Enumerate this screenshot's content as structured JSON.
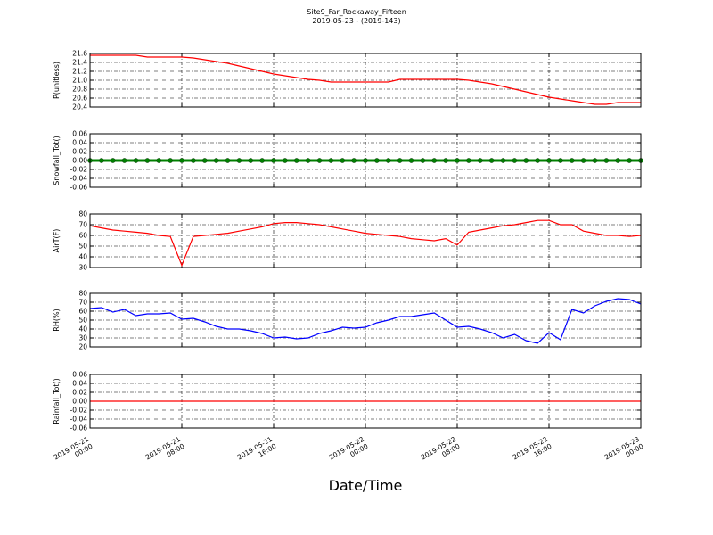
{
  "title": "Site9_Far_Rockaway_Fifteen",
  "subtitle": "2019-05-23 - (2019-143)",
  "xlabel": "Date/Time",
  "chart_data": [
    {
      "type": "line",
      "ylabel": "P(unitless)",
      "x": [
        "2019-05-21 00:00",
        "2019-05-21 01:00",
        "2019-05-21 02:00",
        "2019-05-21 03:00",
        "2019-05-21 04:00",
        "2019-05-21 05:00",
        "2019-05-21 06:00",
        "2019-05-21 07:00",
        "2019-05-21 08:00",
        "2019-05-21 09:00",
        "2019-05-21 10:00",
        "2019-05-21 11:00",
        "2019-05-21 12:00",
        "2019-05-21 13:00",
        "2019-05-21 14:00",
        "2019-05-21 15:00",
        "2019-05-21 16:00",
        "2019-05-21 17:00",
        "2019-05-21 18:00",
        "2019-05-21 19:00",
        "2019-05-21 20:00",
        "2019-05-21 21:00",
        "2019-05-21 22:00",
        "2019-05-21 23:00",
        "2019-05-22 00:00",
        "2019-05-22 01:00",
        "2019-05-22 02:00",
        "2019-05-22 03:00",
        "2019-05-22 04:00",
        "2019-05-22 05:00",
        "2019-05-22 06:00",
        "2019-05-22 07:00",
        "2019-05-22 08:00",
        "2019-05-22 09:00",
        "2019-05-22 10:00",
        "2019-05-22 11:00",
        "2019-05-22 12:00",
        "2019-05-22 13:00",
        "2019-05-22 14:00",
        "2019-05-22 15:00",
        "2019-05-22 16:00",
        "2019-05-22 17:00",
        "2019-05-22 18:00",
        "2019-05-22 19:00",
        "2019-05-22 20:00",
        "2019-05-22 21:00",
        "2019-05-22 22:00",
        "2019-05-22 23:00",
        "2019-05-23 00:00"
      ],
      "series": [
        {
          "color": "#ff0000",
          "values": [
            21.56,
            21.56,
            21.56,
            21.56,
            21.56,
            21.52,
            21.52,
            21.52,
            21.52,
            21.5,
            21.46,
            21.42,
            21.38,
            21.32,
            21.26,
            21.2,
            21.14,
            21.1,
            21.06,
            21.02,
            21.0,
            20.96,
            20.96,
            20.96,
            20.96,
            20.96,
            20.96,
            21.02,
            21.02,
            21.02,
            21.02,
            21.02,
            21.02,
            21.0,
            20.96,
            20.92,
            20.86,
            20.8,
            20.74,
            20.68,
            20.62,
            20.58,
            20.54,
            20.5,
            20.46,
            20.46,
            20.5,
            20.5,
            20.5
          ]
        }
      ],
      "xlim": [
        "2019-05-21 00:00",
        "2019-05-23 00:00"
      ],
      "xticks": [
        "2019-05-21 00:00",
        "2019-05-21 08:00",
        "2019-05-21 16:00",
        "2019-05-22 00:00",
        "2019-05-22 08:00",
        "2019-05-22 16:00",
        "2019-05-23 00:00"
      ],
      "ylim": [
        20.4,
        21.6
      ],
      "yticks": [
        20.4,
        20.6,
        20.8,
        {
          "value": 21,
          "label": "21.0"
        },
        21.2,
        21.4,
        21.6
      ],
      "grid": true
    },
    {
      "type": "line",
      "ylabel": "Snowfall_Tot()",
      "x": [
        "2019-05-21 00:00",
        "2019-05-21 01:00",
        "2019-05-21 02:00",
        "2019-05-21 03:00",
        "2019-05-21 04:00",
        "2019-05-21 05:00",
        "2019-05-21 06:00",
        "2019-05-21 07:00",
        "2019-05-21 08:00",
        "2019-05-21 09:00",
        "2019-05-21 10:00",
        "2019-05-21 11:00",
        "2019-05-21 12:00",
        "2019-05-21 13:00",
        "2019-05-21 14:00",
        "2019-05-21 15:00",
        "2019-05-21 16:00",
        "2019-05-21 17:00",
        "2019-05-21 18:00",
        "2019-05-21 19:00",
        "2019-05-21 20:00",
        "2019-05-21 21:00",
        "2019-05-21 22:00",
        "2019-05-21 23:00",
        "2019-05-22 00:00",
        "2019-05-22 01:00",
        "2019-05-22 02:00",
        "2019-05-22 03:00",
        "2019-05-22 04:00",
        "2019-05-22 05:00",
        "2019-05-22 06:00",
        "2019-05-22 07:00",
        "2019-05-22 08:00",
        "2019-05-22 09:00",
        "2019-05-22 10:00",
        "2019-05-22 11:00",
        "2019-05-22 12:00",
        "2019-05-22 13:00",
        "2019-05-22 14:00",
        "2019-05-22 15:00",
        "2019-05-22 16:00",
        "2019-05-22 17:00",
        "2019-05-22 18:00",
        "2019-05-22 19:00",
        "2019-05-22 20:00",
        "2019-05-22 21:00",
        "2019-05-22 22:00",
        "2019-05-22 23:00",
        "2019-05-23 00:00"
      ],
      "series": [
        {
          "color": "#008000",
          "markers": true,
          "values": [
            0,
            0,
            0,
            0,
            0,
            0,
            0,
            0,
            0,
            0,
            0,
            0,
            0,
            0,
            0,
            0,
            0,
            0,
            0,
            0,
            0,
            0,
            0,
            0,
            0,
            0,
            0,
            0,
            0,
            0,
            0,
            0,
            0,
            0,
            0,
            0,
            0,
            0,
            0,
            0,
            0,
            0,
            0,
            0,
            0,
            0,
            0,
            0,
            0
          ]
        }
      ],
      "xlim": [
        "2019-05-21 00:00",
        "2019-05-23 00:00"
      ],
      "xticks": [
        "2019-05-21 00:00",
        "2019-05-21 08:00",
        "2019-05-21 16:00",
        "2019-05-22 00:00",
        "2019-05-22 08:00",
        "2019-05-22 16:00",
        "2019-05-23 00:00"
      ],
      "ylim": [
        -0.06,
        0.06
      ],
      "yticks": [
        -0.06,
        -0.04,
        -0.02,
        {
          "value": 0,
          "label": "0.00"
        },
        0.02,
        0.04,
        0.06
      ],
      "grid": true
    },
    {
      "type": "line",
      "ylabel": "AirT(F)",
      "x": [
        "2019-05-21 00:00",
        "2019-05-21 01:00",
        "2019-05-21 02:00",
        "2019-05-21 03:00",
        "2019-05-21 04:00",
        "2019-05-21 05:00",
        "2019-05-21 06:00",
        "2019-05-21 07:00",
        "2019-05-21 08:00",
        "2019-05-21 09:00",
        "2019-05-21 10:00",
        "2019-05-21 11:00",
        "2019-05-21 12:00",
        "2019-05-21 13:00",
        "2019-05-21 14:00",
        "2019-05-21 15:00",
        "2019-05-21 16:00",
        "2019-05-21 17:00",
        "2019-05-21 18:00",
        "2019-05-21 19:00",
        "2019-05-21 20:00",
        "2019-05-21 21:00",
        "2019-05-21 22:00",
        "2019-05-21 23:00",
        "2019-05-22 00:00",
        "2019-05-22 01:00",
        "2019-05-22 02:00",
        "2019-05-22 03:00",
        "2019-05-22 04:00",
        "2019-05-22 05:00",
        "2019-05-22 06:00",
        "2019-05-22 07:00",
        "2019-05-22 08:00",
        "2019-05-22 09:00",
        "2019-05-22 10:00",
        "2019-05-22 11:00",
        "2019-05-22 12:00",
        "2019-05-22 13:00",
        "2019-05-22 14:00",
        "2019-05-22 15:00",
        "2019-05-22 16:00",
        "2019-05-22 17:00",
        "2019-05-22 18:00",
        "2019-05-22 19:00",
        "2019-05-22 20:00",
        "2019-05-22 21:00",
        "2019-05-22 22:00",
        "2019-05-22 23:00",
        "2019-05-23 00:00"
      ],
      "series": [
        {
          "color": "#ff0000",
          "values": [
            69,
            67,
            65,
            64,
            63,
            62,
            60,
            59,
            32,
            59,
            60,
            61,
            62,
            64,
            66,
            68,
            71,
            72,
            72,
            71,
            70,
            68,
            66,
            64,
            62,
            61,
            60,
            59,
            57,
            56,
            55,
            57,
            51,
            63,
            65,
            67,
            69,
            70,
            72,
            74,
            74,
            70,
            70,
            64,
            62,
            60,
            60,
            59,
            60
          ]
        }
      ],
      "xlim": [
        "2019-05-21 00:00",
        "2019-05-23 00:00"
      ],
      "xticks": [
        "2019-05-21 00:00",
        "2019-05-21 08:00",
        "2019-05-21 16:00",
        "2019-05-22 00:00",
        "2019-05-22 08:00",
        "2019-05-22 16:00",
        "2019-05-23 00:00"
      ],
      "ylim": [
        30,
        80
      ],
      "yticks": [
        30,
        40,
        50,
        60,
        70,
        80
      ],
      "grid": true
    },
    {
      "type": "line",
      "ylabel": "RH(%)",
      "x": [
        "2019-05-21 00:00",
        "2019-05-21 01:00",
        "2019-05-21 02:00",
        "2019-05-21 03:00",
        "2019-05-21 04:00",
        "2019-05-21 05:00",
        "2019-05-21 06:00",
        "2019-05-21 07:00",
        "2019-05-21 08:00",
        "2019-05-21 09:00",
        "2019-05-21 10:00",
        "2019-05-21 11:00",
        "2019-05-21 12:00",
        "2019-05-21 13:00",
        "2019-05-21 14:00",
        "2019-05-21 15:00",
        "2019-05-21 16:00",
        "2019-05-21 17:00",
        "2019-05-21 18:00",
        "2019-05-21 19:00",
        "2019-05-21 20:00",
        "2019-05-21 21:00",
        "2019-05-21 22:00",
        "2019-05-21 23:00",
        "2019-05-22 00:00",
        "2019-05-22 01:00",
        "2019-05-22 02:00",
        "2019-05-22 03:00",
        "2019-05-22 04:00",
        "2019-05-22 05:00",
        "2019-05-22 06:00",
        "2019-05-22 07:00",
        "2019-05-22 08:00",
        "2019-05-22 09:00",
        "2019-05-22 10:00",
        "2019-05-22 11:00",
        "2019-05-22 12:00",
        "2019-05-22 13:00",
        "2019-05-22 14:00",
        "2019-05-22 15:00",
        "2019-05-22 16:00",
        "2019-05-22 17:00",
        "2019-05-22 18:00",
        "2019-05-22 19:00",
        "2019-05-22 20:00",
        "2019-05-22 21:00",
        "2019-05-22 22:00",
        "2019-05-22 23:00",
        "2019-05-23 00:00"
      ],
      "series": [
        {
          "color": "#0000ff",
          "values": [
            63,
            64,
            59,
            62,
            55,
            57,
            57,
            58,
            51,
            52,
            48,
            43,
            40,
            40,
            38,
            35,
            30,
            31,
            29,
            30,
            35,
            38,
            42,
            41,
            42,
            47,
            50,
            54,
            54,
            56,
            58,
            50,
            42,
            43,
            40,
            36,
            30,
            34,
            27,
            24,
            36,
            28,
            62,
            58,
            66,
            71,
            74,
            73,
            68
          ]
        }
      ],
      "xlim": [
        "2019-05-21 00:00",
        "2019-05-23 00:00"
      ],
      "xticks": [
        "2019-05-21 00:00",
        "2019-05-21 08:00",
        "2019-05-21 16:00",
        "2019-05-22 00:00",
        "2019-05-22 08:00",
        "2019-05-22 16:00",
        "2019-05-23 00:00"
      ],
      "ylim": [
        20,
        80
      ],
      "yticks": [
        20,
        30,
        40,
        50,
        60,
        70,
        80
      ],
      "grid": true
    },
    {
      "type": "line",
      "ylabel": "Rainfall_Tot()",
      "x": [
        "2019-05-21 00:00",
        "2019-05-21 01:00",
        "2019-05-21 02:00",
        "2019-05-21 03:00",
        "2019-05-21 04:00",
        "2019-05-21 05:00",
        "2019-05-21 06:00",
        "2019-05-21 07:00",
        "2019-05-21 08:00",
        "2019-05-21 09:00",
        "2019-05-21 10:00",
        "2019-05-21 11:00",
        "2019-05-21 12:00",
        "2019-05-21 13:00",
        "2019-05-21 14:00",
        "2019-05-21 15:00",
        "2019-05-21 16:00",
        "2019-05-21 17:00",
        "2019-05-21 18:00",
        "2019-05-21 19:00",
        "2019-05-21 20:00",
        "2019-05-21 21:00",
        "2019-05-21 22:00",
        "2019-05-21 23:00",
        "2019-05-22 00:00",
        "2019-05-22 01:00",
        "2019-05-22 02:00",
        "2019-05-22 03:00",
        "2019-05-22 04:00",
        "2019-05-22 05:00",
        "2019-05-22 06:00",
        "2019-05-22 07:00",
        "2019-05-22 08:00",
        "2019-05-22 09:00",
        "2019-05-22 10:00",
        "2019-05-22 11:00",
        "2019-05-22 12:00",
        "2019-05-22 13:00",
        "2019-05-22 14:00",
        "2019-05-22 15:00",
        "2019-05-22 16:00",
        "2019-05-22 17:00",
        "2019-05-22 18:00",
        "2019-05-22 19:00",
        "2019-05-22 20:00",
        "2019-05-22 21:00",
        "2019-05-22 22:00",
        "2019-05-22 23:00",
        "2019-05-23 00:00"
      ],
      "series": [
        {
          "color": "#ff0000",
          "values": [
            0,
            0,
            0,
            0,
            0,
            0,
            0,
            0,
            0,
            0,
            0,
            0,
            0,
            0,
            0,
            0,
            0,
            0,
            0,
            0,
            0,
            0,
            0,
            0,
            0,
            0,
            0,
            0,
            0,
            0,
            0,
            0,
            0,
            0,
            0,
            0,
            0,
            0,
            0,
            0,
            0,
            0,
            0,
            0,
            0,
            0,
            0,
            0,
            0
          ]
        }
      ],
      "xlim": [
        "2019-05-21 00:00",
        "2019-05-23 00:00"
      ],
      "xticks": [
        "2019-05-21 00:00",
        "2019-05-21 08:00",
        "2019-05-21 16:00",
        "2019-05-22 00:00",
        "2019-05-22 08:00",
        "2019-05-22 16:00",
        "2019-05-23 00:00"
      ],
      "ylim": [
        -0.06,
        0.06
      ],
      "yticks": [
        -0.06,
        -0.04,
        -0.02,
        {
          "value": 0,
          "label": "0.00"
        },
        0.02,
        0.04,
        0.06
      ],
      "grid": true
    }
  ]
}
